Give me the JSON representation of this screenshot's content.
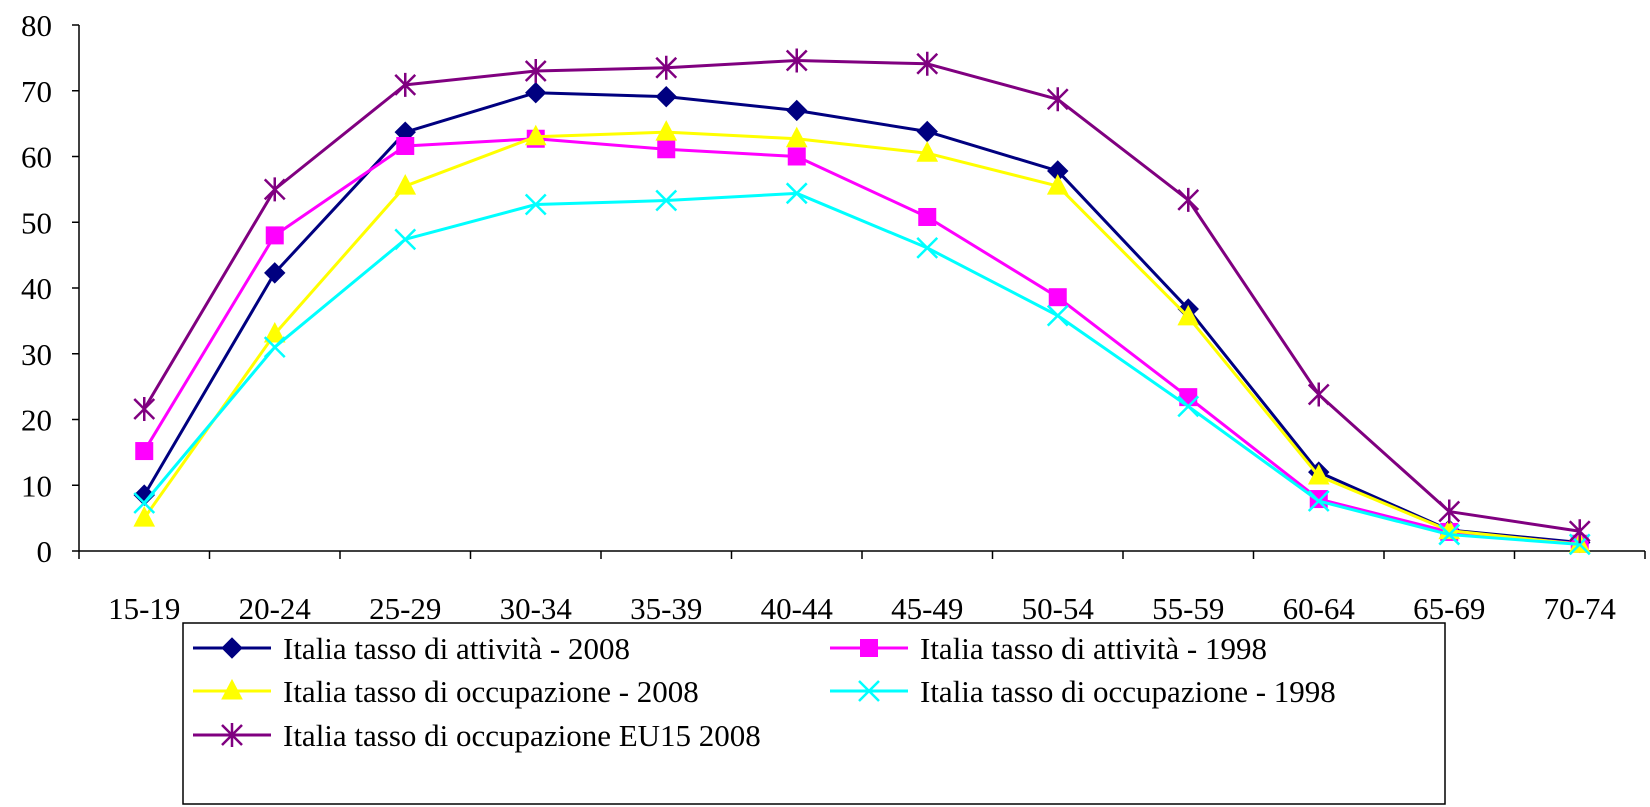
{
  "chart_data": {
    "type": "line",
    "title": "",
    "xlabel": "",
    "ylabel": "",
    "ylim": [
      0,
      80
    ],
    "yticks": [
      0,
      10,
      20,
      30,
      40,
      50,
      60,
      70,
      80
    ],
    "grid": false,
    "legend_position": "bottom",
    "categories": [
      "15-19",
      "20-24",
      "25-29",
      "30-34",
      "35-39",
      "40-44",
      "45-49",
      "50-54",
      "55-59",
      "60-64",
      "65-69",
      "70-74"
    ],
    "series": [
      {
        "name": "Italia tasso di attività - 2008",
        "color": "#000080",
        "marker": "diamond",
        "values": [
          8.5,
          42.3,
          63.7,
          69.7,
          69.1,
          67.0,
          63.8,
          57.8,
          36.8,
          12.0,
          3.2,
          1.3
        ]
      },
      {
        "name": "Italia tasso di attività - 1998",
        "color": "#FF00FF",
        "marker": "square",
        "values": [
          15.2,
          48.0,
          61.6,
          62.7,
          61.1,
          60.0,
          50.8,
          38.6,
          23.4,
          7.9,
          2.9,
          1.1
        ]
      },
      {
        "name": "Italia tasso di occupazione - 2008",
        "color": "#FFFF00",
        "marker": "triangle",
        "values": [
          5.0,
          33.0,
          55.5,
          63.0,
          63.7,
          62.7,
          60.5,
          55.5,
          35.6,
          11.4,
          3.1,
          1.0
        ]
      },
      {
        "name": "Italia tasso di occupazione - 1998",
        "color": "#00FFFF",
        "marker": "x",
        "values": [
          7.3,
          31.0,
          47.4,
          52.7,
          53.3,
          54.4,
          46.1,
          35.8,
          22.0,
          7.6,
          2.5,
          1.0
        ]
      },
      {
        "name": "Italia tasso di occupazione EU15 2008",
        "color": "#800080",
        "marker": "star",
        "values": [
          21.6,
          55.0,
          70.9,
          73.0,
          73.5,
          74.6,
          74.1,
          68.7,
          53.4,
          23.8,
          6.0,
          3.0
        ]
      }
    ]
  }
}
